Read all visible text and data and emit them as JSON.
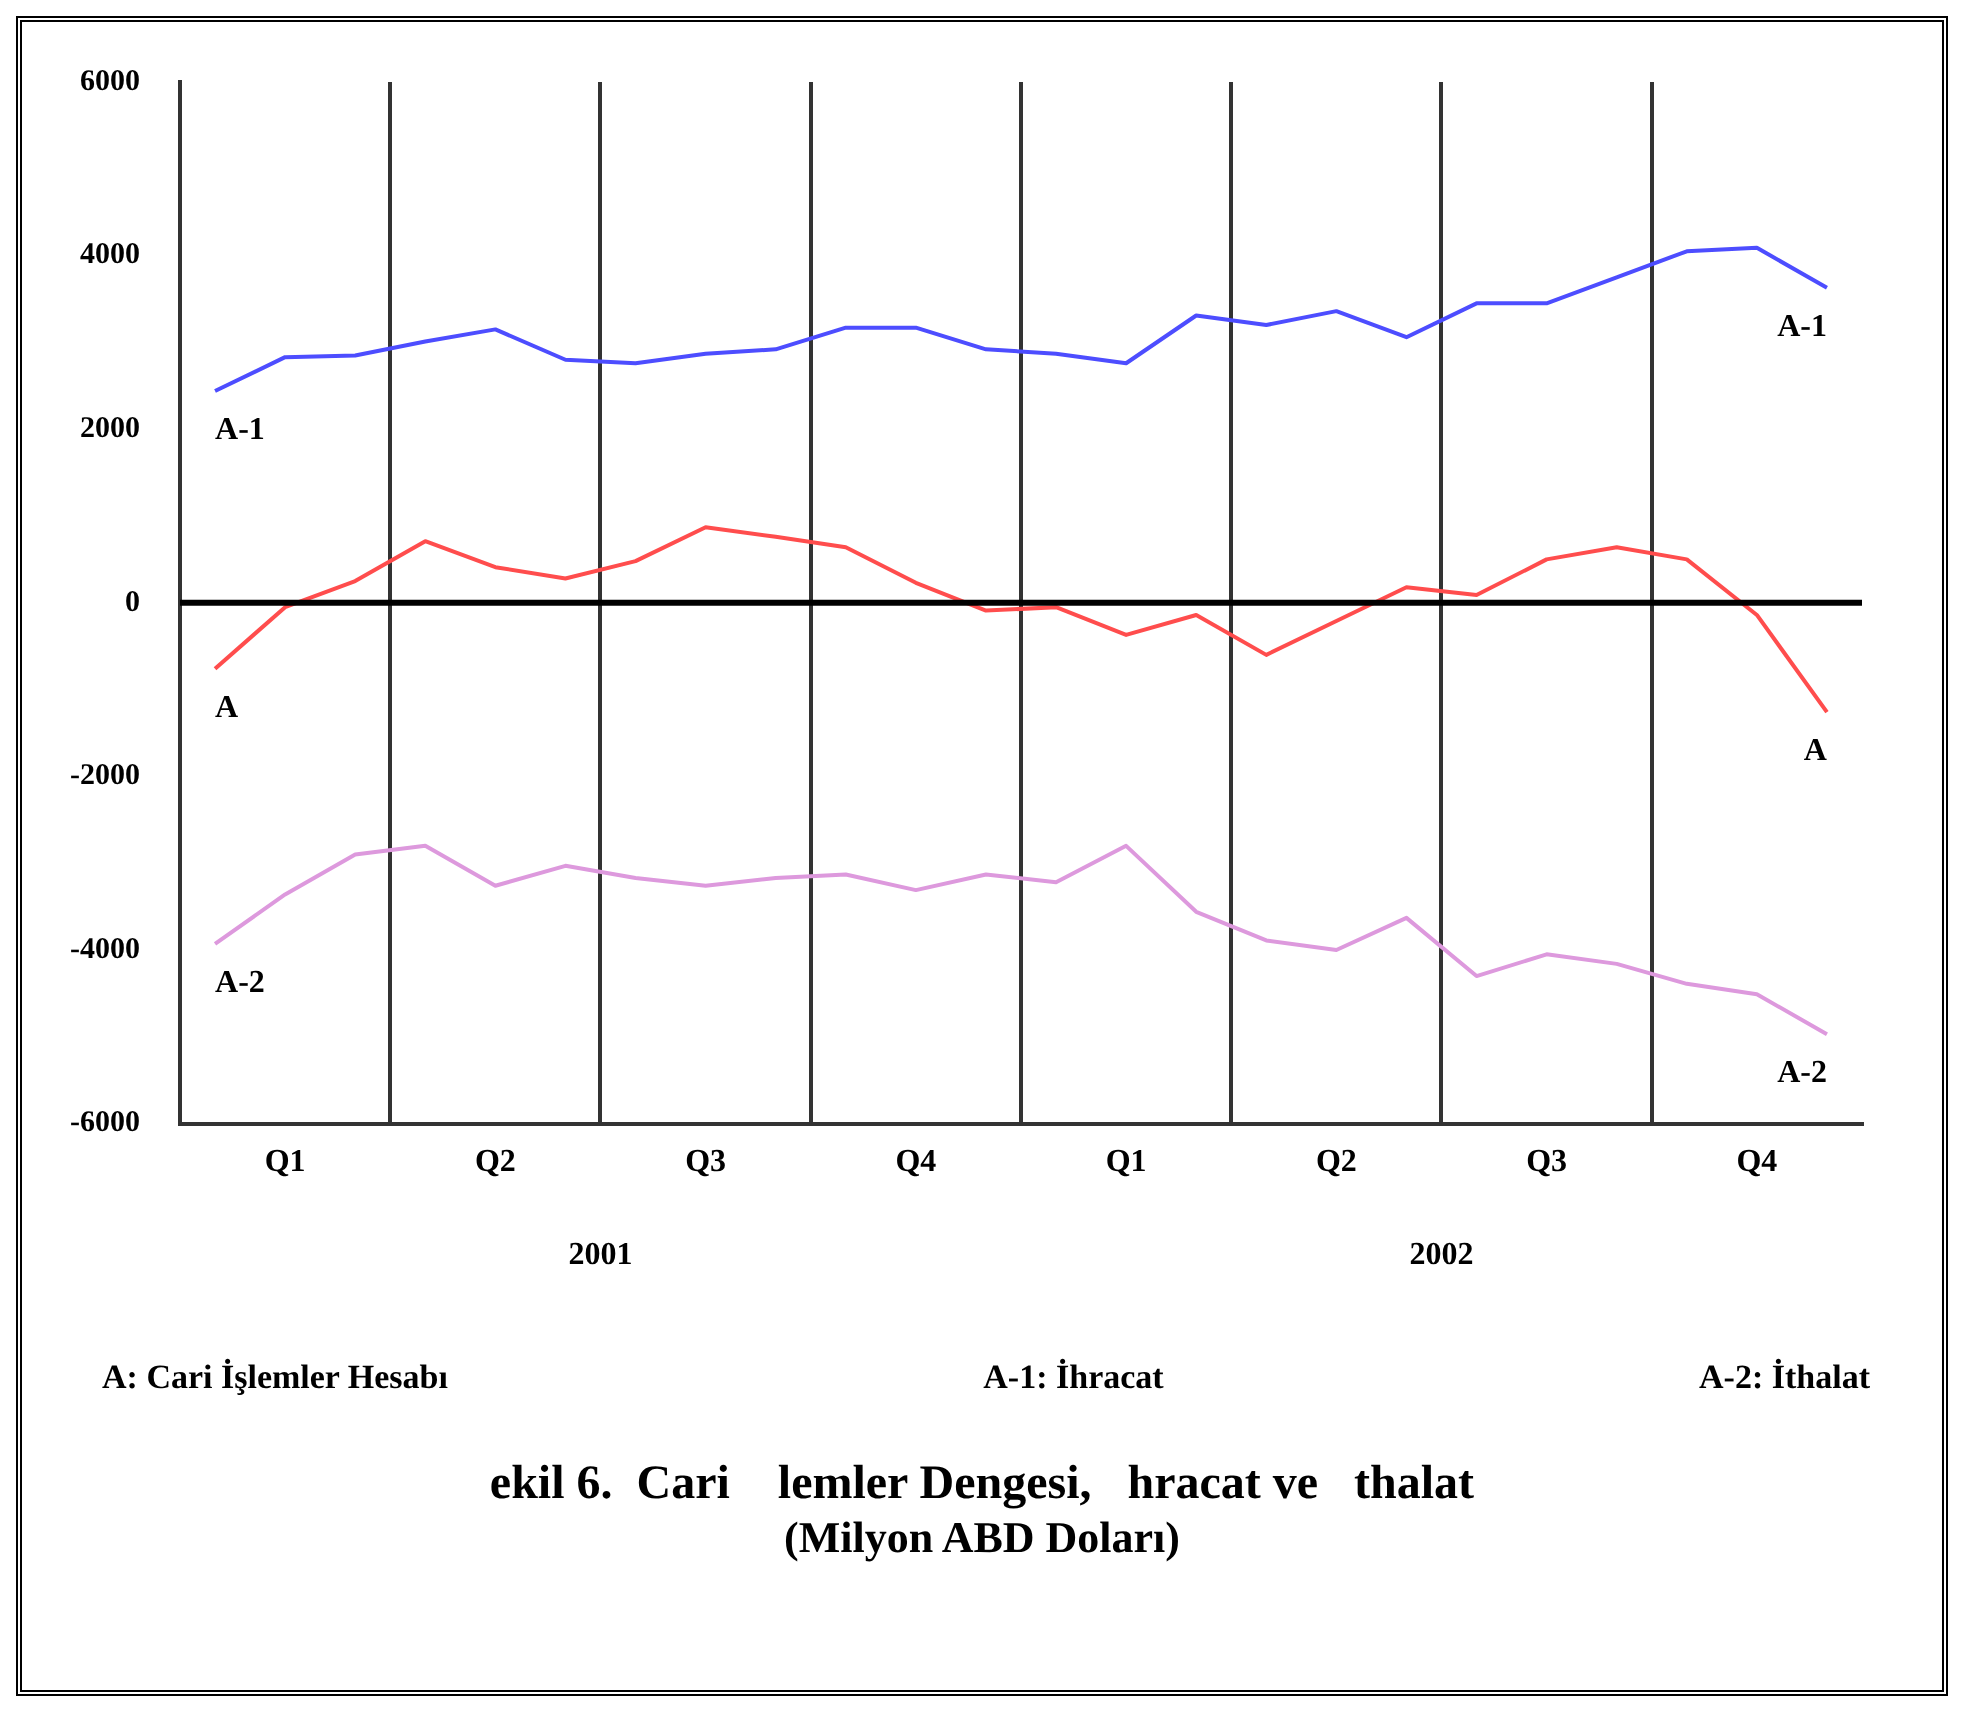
{
  "chart_data": {
    "type": "line",
    "title": "ekil 6.  Cari    lemler Dengesi,   hracat ve   thalat",
    "subtitle": "(Milyon ABD Doları)",
    "categories": [
      null,
      "Q1",
      null,
      null,
      "Q2",
      null,
      null,
      "Q3",
      null,
      null,
      "Q4",
      null,
      null,
      "Q1",
      null,
      null,
      "Q2",
      null,
      null,
      "Q3",
      null,
      null,
      "Q4",
      null
    ],
    "series": [
      {
        "name": "A-1",
        "color": "#4d4dff",
        "values": [
          2440,
          2830,
          2850,
          3010,
          3150,
          2800,
          2760,
          2870,
          2920,
          3170,
          3170,
          2920,
          2870,
          2760,
          3310,
          3200,
          3360,
          3060,
          3450,
          3450,
          3750,
          4050,
          4090,
          3630
        ]
      },
      {
        "name": "A",
        "color": "#ff4d4d",
        "values": [
          -760,
          -50,
          250,
          710,
          410,
          280,
          480,
          870,
          760,
          640,
          230,
          -90,
          -50,
          -370,
          -140,
          -600,
          -210,
          180,
          90,
          500,
          640,
          500,
          -140,
          -1260
        ]
      },
      {
        "name": "A-2",
        "color": "#dd99dd",
        "values": [
          -3930,
          -3360,
          -2900,
          -2800,
          -3260,
          -3030,
          -3170,
          -3260,
          -3170,
          -3130,
          -3310,
          -3130,
          -3220,
          -2800,
          -3560,
          -3890,
          -4000,
          -3630,
          -4300,
          -4050,
          -4160,
          -4390,
          -4510,
          -4970
        ]
      }
    ],
    "ylim": [
      -6000,
      6000
    ],
    "yticks": [
      -6000,
      -4000,
      -2000,
      0,
      2000,
      4000,
      6000
    ],
    "grid": "x",
    "legend": false,
    "marker": "none",
    "line_style": "solid",
    "ref_lines": [
      {
        "axis": "y",
        "value": 0,
        "color": "#000000"
      }
    ],
    "annotations": [
      "2001",
      "2002",
      "A: Cari İşlemler Hesabı",
      "A-1: İhracat",
      "A-2: İthalat"
    ]
  }
}
